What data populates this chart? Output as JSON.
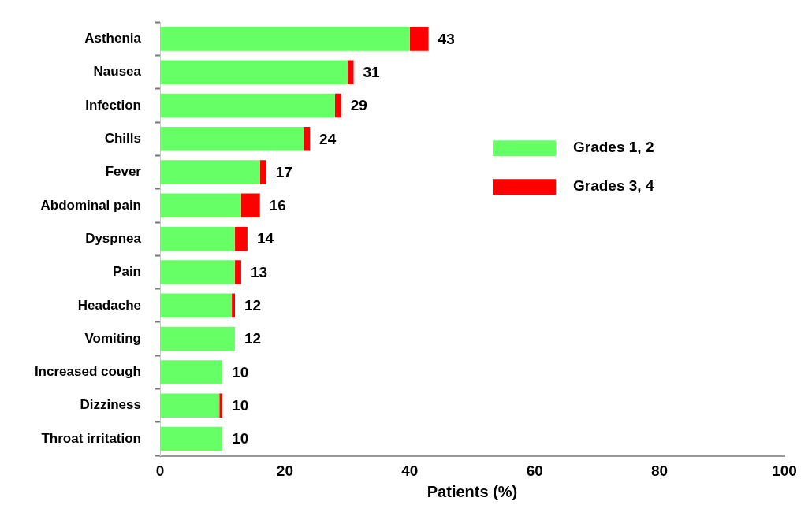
{
  "chart_data": {
    "type": "bar",
    "orientation": "horizontal",
    "stacked": true,
    "categories": [
      "Asthenia",
      "Nausea",
      "Infection",
      "Chills",
      "Fever",
      "Abdominal pain",
      "Dyspnea",
      "Pain",
      "Headache",
      "Vomiting",
      "Increased cough",
      "Dizziness",
      "Throat irritation"
    ],
    "series": [
      {
        "name": "Grades 1, 2",
        "color": "#66ff66",
        "values": [
          40,
          30,
          28,
          23,
          16,
          13,
          12,
          12,
          11.5,
          12,
          10,
          9.5,
          10
        ]
      },
      {
        "name": "Grades 3, 4",
        "color": "#ff0000",
        "values": [
          3,
          1,
          1,
          1,
          1,
          3,
          2,
          1,
          0.5,
          0,
          0,
          0.5,
          0
        ]
      }
    ],
    "totals": [
      "43",
      "31",
      "29",
      "24",
      "17",
      "16",
      "14",
      "13",
      "12",
      "12",
      "10",
      "10",
      "10"
    ],
    "xlabel": "Patients (%)",
    "xlim": [
      0,
      100
    ],
    "xticks": [
      0,
      20,
      40,
      60,
      80,
      100
    ],
    "grid": false,
    "legend": "top right"
  }
}
